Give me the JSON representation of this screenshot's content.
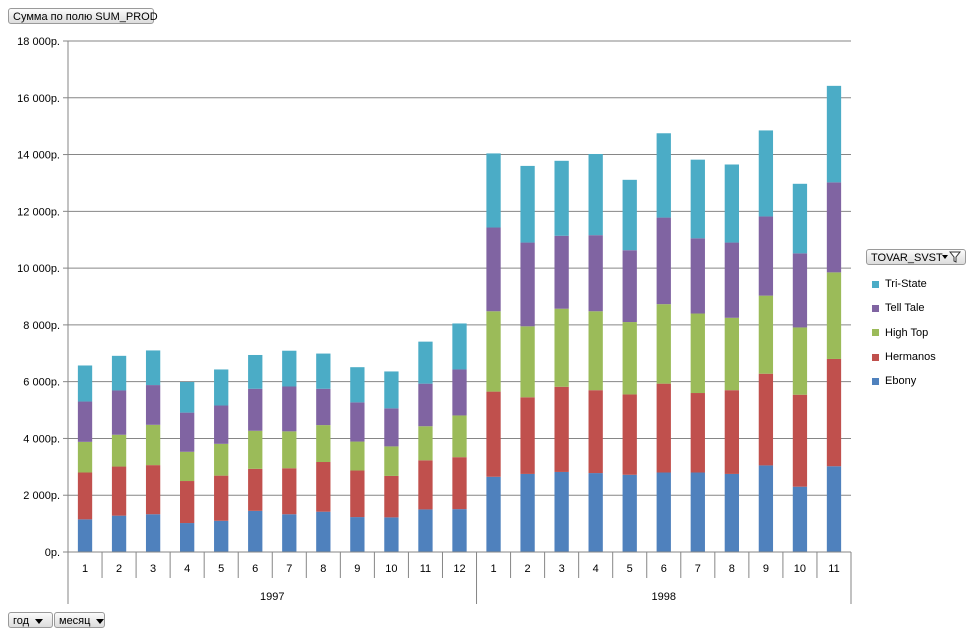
{
  "pivot": {
    "value_field": "Сумма по полю SUM_PROD",
    "legend_field": "TOVAR_SVST",
    "row_fields": [
      "год",
      "месяц"
    ]
  },
  "chart_data": {
    "type": "bar",
    "stacked": true,
    "title": "",
    "xlabel": "",
    "ylabel": "",
    "ylim": [
      0,
      18000
    ],
    "y_ticks": [
      "0р.",
      "2 000р.",
      "4 000р.",
      "6 000р.",
      "8 000р.",
      "10 000р.",
      "12 000р.",
      "14 000р.",
      "16 000р.",
      "18 000р."
    ],
    "y_tick_values": [
      0,
      2000,
      4000,
      6000,
      8000,
      10000,
      12000,
      14000,
      16000,
      18000
    ],
    "grid": true,
    "legend_position": "right",
    "groups": [
      {
        "label": "1997",
        "categories": [
          "1",
          "2",
          "3",
          "4",
          "5",
          "6",
          "7",
          "8",
          "9",
          "10",
          "11",
          "12"
        ]
      },
      {
        "label": "1998",
        "categories": [
          "1",
          "2",
          "3",
          "4",
          "5",
          "6",
          "7",
          "8",
          "9",
          "10",
          "11"
        ]
      }
    ],
    "series": [
      {
        "name": "Ebony",
        "color": "#4f81bd",
        "values": [
          1150,
          1280,
          1330,
          1020,
          1100,
          1450,
          1330,
          1420,
          1230,
          1220,
          1500,
          1510,
          2650,
          2750,
          2820,
          2780,
          2720,
          2800,
          2800,
          2750,
          3050,
          2300,
          3020
        ]
      },
      {
        "name": "Hermanos",
        "color": "#c0504d",
        "values": [
          1650,
          1730,
          1730,
          1480,
          1590,
          1480,
          1620,
          1750,
          1640,
          1460,
          1730,
          1830,
          3000,
          2700,
          3000,
          2920,
          2830,
          3130,
          2800,
          2950,
          3230,
          3240,
          3780
        ]
      },
      {
        "name": "High Top",
        "color": "#9bbb59",
        "values": [
          1080,
          1120,
          1420,
          1030,
          1120,
          1340,
          1300,
          1300,
          1020,
          1040,
          1200,
          1470,
          2830,
          2500,
          2750,
          2780,
          2550,
          2800,
          2800,
          2550,
          2750,
          2370,
          3050
        ]
      },
      {
        "name": "Tell Tale",
        "color": "#8064a2",
        "values": [
          1420,
          1560,
          1400,
          1380,
          1350,
          1480,
          1580,
          1280,
          1380,
          1340,
          1500,
          1620,
          2950,
          2950,
          2570,
          2680,
          2530,
          3050,
          2650,
          2650,
          2790,
          2610,
          3170
        ]
      },
      {
        "name": "Tri-State",
        "color": "#4bacc6",
        "values": [
          1270,
          1220,
          1220,
          1080,
          1270,
          1190,
          1260,
          1240,
          1240,
          1300,
          1480,
          1620,
          2610,
          2700,
          2640,
          2860,
          2480,
          2970,
          2770,
          2750,
          3030,
          2450,
          3400
        ]
      }
    ]
  }
}
